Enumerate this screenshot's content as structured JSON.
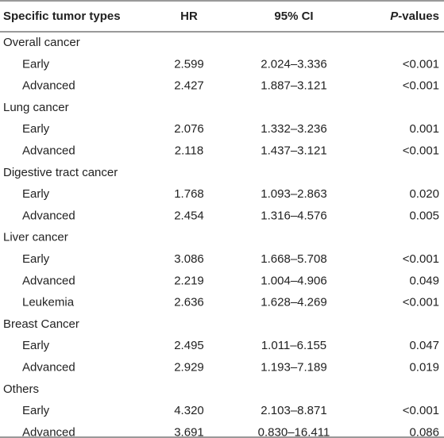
{
  "table": {
    "header": [
      "Specific tumor types",
      "HR",
      "95% CI"
    ],
    "header_last": {
      "italic": "P",
      "text": "-values"
    },
    "rows": [
      {
        "group": "Overall cancer"
      },
      {
        "cells": [
          "Early",
          "2.599",
          "2.024–3.336",
          "<0.001"
        ]
      },
      {
        "cells": [
          "Advanced",
          "2.427",
          "1.887–3.121",
          "<0.001"
        ]
      },
      {
        "group": "Lung cancer"
      },
      {
        "cells": [
          "Early",
          "2.076",
          "1.332–3.236",
          "0.001"
        ]
      },
      {
        "cells": [
          "Advanced",
          "2.118",
          "1.437–3.121",
          "<0.001"
        ]
      },
      {
        "group": "Digestive tract cancer"
      },
      {
        "cells": [
          "Early",
          "1.768",
          "1.093–2.863",
          "0.020"
        ]
      },
      {
        "cells": [
          "Advanced",
          "2.454",
          "1.316–4.576",
          "0.005"
        ]
      },
      {
        "group": "Liver cancer"
      },
      {
        "cells": [
          "Early",
          "3.086",
          "1.668–5.708",
          "<0.001"
        ]
      },
      {
        "cells": [
          "Advanced",
          "2.219",
          "1.004–4.906",
          "0.049"
        ]
      },
      {
        "cells": [
          "Leukemia",
          "2.636",
          "1.628–4.269",
          "<0.001"
        ]
      },
      {
        "group": "Breast Cancer"
      },
      {
        "cells": [
          "Early",
          "2.495",
          "1.011–6.155",
          "0.047"
        ]
      },
      {
        "cells": [
          "Advanced",
          "2.929",
          "1.193–7.189",
          "0.019"
        ]
      },
      {
        "group": "Others"
      },
      {
        "cells": [
          "Early",
          "4.320",
          "2.103–8.871",
          "<0.001"
        ]
      },
      {
        "cells": [
          "Advanced",
          "3.691",
          "0.830–16.411",
          "0.086"
        ]
      }
    ]
  }
}
